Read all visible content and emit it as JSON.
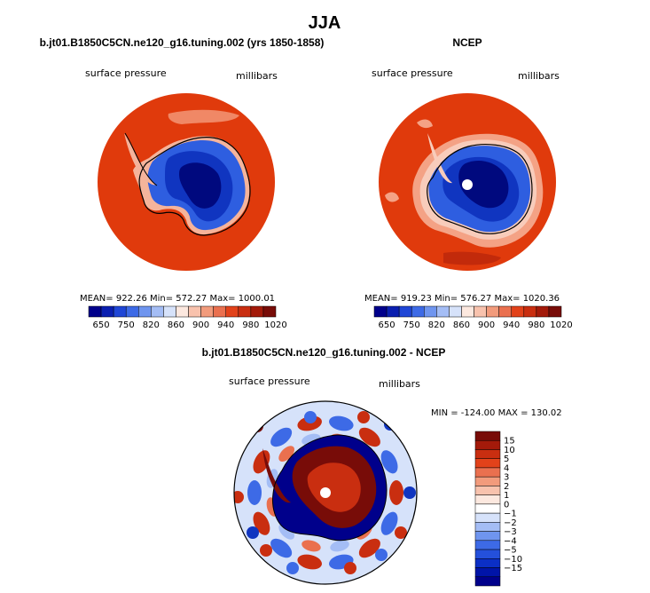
{
  "title": "JJA",
  "panels": [
    {
      "id": "model",
      "subtitle": "b.jt01.B1850C5CN.ne120_g16.tuning.002 (yrs 1850-1858)",
      "left_label": "surface pressure",
      "right_label": "millibars",
      "stats": "MEAN= 922.26   Min= 572.27   Max= 1000.01"
    },
    {
      "id": "ncep",
      "subtitle": "NCEP",
      "left_label": "surface pressure",
      "right_label": "millibars",
      "stats": "MEAN= 919.23   Min= 576.27   Max= 1020.36"
    },
    {
      "id": "diff",
      "subtitle": "b.jt01.B1850C5CN.ne120_g16.tuning.002 - NCEP",
      "left_label": "surface pressure",
      "right_label": "millibars",
      "stats": "MIN = -124.00  MAX = 130.02"
    }
  ],
  "colors": {
    "abs_scale": [
      "#00008b",
      "#0a1fb0",
      "#1f46d6",
      "#3d6ae6",
      "#6f95ef",
      "#a4bdf5",
      "#d6e2fa",
      "#fce8df",
      "#f8c2ad",
      "#f29b7c",
      "#ea704f",
      "#e2421a",
      "#c92e10",
      "#a31a0a",
      "#780c08"
    ],
    "diff_scale": [
      "#00008b",
      "#0014a8",
      "#0b2fc6",
      "#2450db",
      "#3d6ae6",
      "#6f95ef",
      "#a4bdf5",
      "#d6e2fa",
      "#ffffff",
      "#fce8df",
      "#f8c2ad",
      "#f29b7c",
      "#ea704f",
      "#e2421a",
      "#c92e10",
      "#a31a0a",
      "#780c08"
    ]
  },
  "chart_data": [
    {
      "type": "heatmap",
      "projection": "south-polar stereographic",
      "title": "b.jt01.B1850C5CN.ne120_g16.tuning.002 (yrs 1850-1858)",
      "variable": "surface pressure",
      "units": "millibars",
      "mean": 922.26,
      "min": 572.27,
      "max": 1000.01,
      "colorbar_tick_labels": [
        "650",
        "750",
        "820",
        "860",
        "900",
        "940",
        "980",
        "1020"
      ]
    },
    {
      "type": "heatmap",
      "projection": "south-polar stereographic",
      "title": "NCEP",
      "variable": "surface pressure",
      "units": "millibars",
      "mean": 919.23,
      "min": 576.27,
      "max": 1020.36,
      "colorbar_tick_labels": [
        "650",
        "750",
        "820",
        "860",
        "900",
        "940",
        "980",
        "1020"
      ]
    },
    {
      "type": "heatmap",
      "projection": "south-polar stereographic",
      "title": "b.jt01.B1850C5CN.ne120_g16.tuning.002 - NCEP",
      "variable": "surface pressure",
      "units": "millibars",
      "min": -124.0,
      "max": 130.02,
      "colorbar_tick_labels": [
        "15",
        "10",
        "5",
        "4",
        "3",
        "2",
        "1",
        "0",
        "−1",
        "−2",
        "−3",
        "−4",
        "−5",
        "−10",
        "−15"
      ]
    }
  ]
}
